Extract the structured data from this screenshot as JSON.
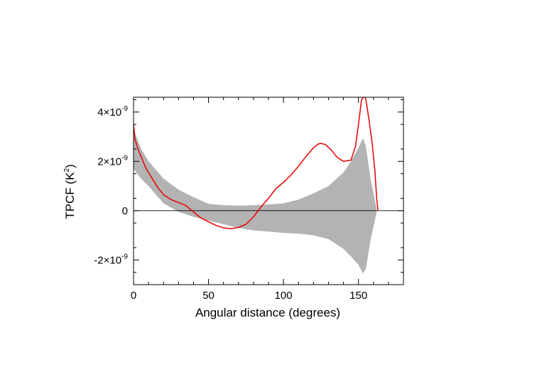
{
  "chart_data": {
    "type": "area",
    "title": "",
    "xlabel": "Angular distance (degrees)",
    "ylabel_main": "TPCF (K",
    "ylabel_sup": "2",
    "ylabel_end": ")",
    "xlim": [
      0,
      180
    ],
    "ylim": [
      -3e-09,
      4.6e-09
    ],
    "x_ticks": [
      {
        "value": 0,
        "label": "0"
      },
      {
        "value": 50,
        "label": "50"
      },
      {
        "value": 100,
        "label": "100"
      },
      {
        "value": 150,
        "label": "150"
      }
    ],
    "y_ticks": [
      {
        "value": -2e-09,
        "base": "-2×10",
        "exp": "-9"
      },
      {
        "value": 0,
        "base": "0",
        "exp": ""
      },
      {
        "value": 2e-09,
        "base": "2×10",
        "exp": "-9"
      },
      {
        "value": 4e-09,
        "base": "4×10",
        "exp": "-9"
      }
    ],
    "zero_line": true,
    "grid": false,
    "colors": {
      "band": "#b3b3b3",
      "curve": "#e60000",
      "axis": "#000000"
    },
    "series": [
      {
        "kind": "band",
        "x": [
          0,
          5,
          10,
          20,
          30,
          40,
          50,
          60,
          70,
          80,
          90,
          100,
          110,
          120,
          130,
          140,
          145,
          150,
          153,
          155,
          158,
          162
        ],
        "upper": [
          3.3e-09,
          2.5e-09,
          2e-09,
          1.3e-09,
          8.5e-10,
          5.5e-10,
          2.8e-10,
          2.2e-10,
          2e-10,
          2.2e-10,
          2.5e-10,
          3e-10,
          4.5e-10,
          7e-10,
          1e-09,
          1.55e-09,
          2e-09,
          2.55e-09,
          2.95e-09,
          2.6e-09,
          1.3e-09,
          1e-10
        ],
        "lower": [
          1.7e-09,
          1.3e-09,
          1e-09,
          3e-10,
          -5e-11,
          -2.5e-10,
          -4e-10,
          -5.5e-10,
          -7e-10,
          -8e-10,
          -8.5e-10,
          -9e-10,
          -9.3e-10,
          -1e-09,
          -1.15e-09,
          -1.55e-09,
          -1.85e-09,
          -2.2e-09,
          -2.55e-09,
          -2.35e-09,
          -1.2e-09,
          -1e-10
        ]
      },
      {
        "kind": "line",
        "x": [
          0,
          1,
          3,
          5,
          8,
          12,
          16,
          20,
          25,
          30,
          35,
          40,
          45,
          50,
          55,
          60,
          65,
          70,
          75,
          80,
          85,
          90,
          95,
          100,
          105,
          110,
          115,
          120,
          123,
          125,
          128,
          132,
          136,
          140,
          145,
          148,
          150,
          152,
          154,
          155,
          157,
          159,
          161,
          162,
          163
        ],
        "y": [
          3.5e-09,
          2.9e-09,
          2.5e-09,
          2.2e-09,
          1.75e-09,
          1.35e-09,
          9.5e-10,
          6.5e-10,
          4.5e-10,
          3.3e-10,
          2e-10,
          -5e-11,
          -3e-10,
          -4.5e-10,
          -6e-10,
          -7e-10,
          -7.3e-10,
          -6.8e-10,
          -5.5e-10,
          -2.5e-10,
          1.5e-10,
          5e-10,
          9e-10,
          1.15e-09,
          1.45e-09,
          1.8e-09,
          2.2e-09,
          2.55e-09,
          2.7e-09,
          2.73e-09,
          2.68e-09,
          2.45e-09,
          2.15e-09,
          2e-09,
          2.05e-09,
          2.6e-09,
          3.5e-09,
          4.5e-09,
          4.65e-09,
          4.5e-09,
          3.7e-09,
          2.8e-09,
          1.6e-09,
          6e-10,
          0.0
        ]
      }
    ]
  }
}
